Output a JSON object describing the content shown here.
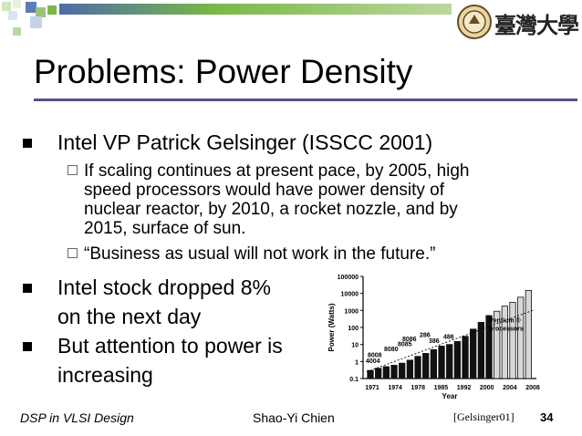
{
  "slide": {
    "title": "Problems: Power Density",
    "bullets": [
      {
        "text": "Intel VP Patrick Gelsinger (ISSCC 2001)"
      },
      {
        "text": "Intel stock dropped 8%"
      },
      {
        "text": "on the next day"
      },
      {
        "text": "But attention to power is"
      },
      {
        "text": "increasing"
      }
    ],
    "sub_bullets": [
      {
        "lines": [
          "If scaling continues at present pace, by 2005, high",
          "speed processors would have power density of",
          "nuclear reactor, by 2010, a rocket nozzle, and by",
          "2015, surface of sun."
        ]
      },
      {
        "lines": [
          "“Business as usual will not work in the future.”"
        ]
      }
    ],
    "logo_text": "臺灣大學"
  },
  "footer": {
    "course": "DSP in VLSI Design",
    "author": "Shao-Yi Chien",
    "citation": "[Gelsinger01]",
    "page": "34"
  },
  "colors": {
    "accent": "#55508e",
    "deco_green": "#7ab848",
    "deco_blue": "#4e6ca8"
  },
  "chart_data": {
    "type": "bar",
    "xlabel": "Year",
    "ylabel": "Power (Watts)",
    "y_scale": "log",
    "ylim": [
      0.1,
      100000
    ],
    "y_ticks": [
      "100000",
      "10000",
      "1000",
      "100",
      "10",
      "1",
      "0.1"
    ],
    "x_ticks": [
      "1971",
      "1974",
      "1978",
      "1985",
      "1992",
      "2000",
      "2004",
      "2008"
    ],
    "annotations": [
      "4004",
      "8008",
      "8080",
      "8085",
      "8086",
      "286",
      "386",
      "486",
      "Pentium ® processors"
    ],
    "values": [
      0.3,
      0.4,
      0.5,
      0.6,
      0.8,
      1.2,
      2,
      3,
      5,
      8,
      10,
      15,
      30,
      80,
      200,
      500,
      900,
      1800,
      3000,
      6000,
      15000
    ]
  }
}
